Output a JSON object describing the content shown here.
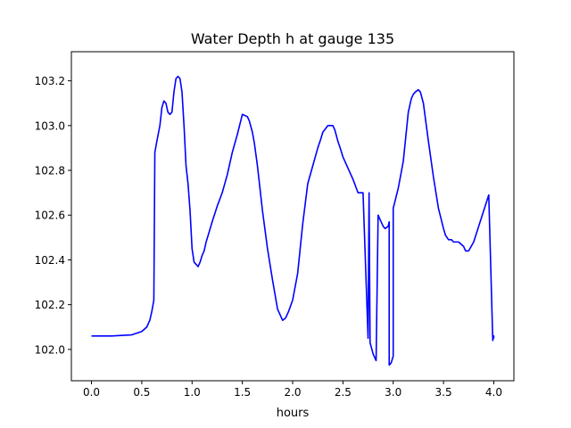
{
  "chart_data": {
    "type": "line",
    "title": "Water Depth h at gauge 135",
    "xlabel": "hours",
    "ylabel": "",
    "xlim": [
      -0.2,
      4.2
    ],
    "ylim": [
      101.86,
      103.33
    ],
    "grid": false,
    "legend": "none",
    "xticks": [
      {
        "value": 0.0,
        "label": "0.0"
      },
      {
        "value": 0.5,
        "label": "0.5"
      },
      {
        "value": 1.0,
        "label": "1.0"
      },
      {
        "value": 1.5,
        "label": "1.5"
      },
      {
        "value": 2.0,
        "label": "2.0"
      },
      {
        "value": 2.5,
        "label": "2.5"
      },
      {
        "value": 3.0,
        "label": "3.0"
      },
      {
        "value": 3.5,
        "label": "3.5"
      },
      {
        "value": 4.0,
        "label": "4.0"
      }
    ],
    "yticks": [
      {
        "value": 102.0,
        "label": "102.0"
      },
      {
        "value": 102.2,
        "label": "102.2"
      },
      {
        "value": 102.4,
        "label": "102.4"
      },
      {
        "value": 102.6,
        "label": "102.6"
      },
      {
        "value": 102.8,
        "label": "102.8"
      },
      {
        "value": 103.0,
        "label": "103.0"
      },
      {
        "value": 103.2,
        "label": "103.2"
      }
    ],
    "series": [
      {
        "color": "#0000ff",
        "x": [
          0.0,
          0.2,
          0.4,
          0.5,
          0.55,
          0.58,
          0.6,
          0.62,
          0.63,
          0.63,
          0.65,
          0.68,
          0.7,
          0.72,
          0.74,
          0.76,
          0.78,
          0.8,
          0.82,
          0.84,
          0.86,
          0.88,
          0.9,
          0.92,
          0.94,
          0.96,
          0.98,
          1.0,
          1.02,
          1.04,
          1.06,
          1.08,
          1.1,
          1.12,
          1.14,
          1.16,
          1.18,
          1.2,
          1.25,
          1.3,
          1.35,
          1.4,
          1.45,
          1.5,
          1.55,
          1.57,
          1.6,
          1.62,
          1.65,
          1.7,
          1.75,
          1.8,
          1.85,
          1.9,
          1.93,
          1.96,
          2.0,
          2.05,
          2.1,
          2.15,
          2.2,
          2.25,
          2.28,
          2.3,
          2.35,
          2.4,
          2.42,
          2.45,
          2.48,
          2.5,
          2.55,
          2.6,
          2.65,
          2.7,
          2.75,
          2.75,
          2.76,
          2.76,
          2.77,
          2.77,
          2.8,
          2.83,
          2.85,
          2.85,
          2.87,
          2.9,
          2.92,
          2.95,
          2.96,
          2.96,
          2.98,
          3.0,
          3.0,
          3.05,
          3.1,
          3.15,
          3.18,
          3.2,
          3.22,
          3.25,
          3.27,
          3.3,
          3.35,
          3.4,
          3.45,
          3.5,
          3.52,
          3.55,
          3.58,
          3.6,
          3.65,
          3.7,
          3.72,
          3.75,
          3.8,
          3.85,
          3.9,
          3.95,
          3.99,
          3.99,
          4.0,
          4.0
        ],
        "y": [
          102.06,
          102.06,
          102.065,
          102.08,
          102.1,
          102.13,
          102.17,
          102.22,
          102.88,
          102.88,
          102.93,
          103.0,
          103.08,
          103.11,
          103.1,
          103.06,
          103.05,
          103.06,
          103.15,
          103.21,
          103.22,
          103.21,
          103.15,
          103.0,
          102.82,
          102.74,
          102.62,
          102.45,
          102.39,
          102.38,
          102.37,
          102.39,
          102.42,
          102.44,
          102.48,
          102.51,
          102.54,
          102.57,
          102.64,
          102.7,
          102.78,
          102.88,
          102.96,
          103.05,
          103.04,
          103.02,
          102.97,
          102.92,
          102.82,
          102.62,
          102.45,
          102.31,
          102.18,
          102.13,
          102.14,
          102.17,
          102.22,
          102.34,
          102.56,
          102.74,
          102.82,
          102.9,
          102.94,
          102.97,
          103.0,
          103.0,
          102.98,
          102.93,
          102.89,
          102.86,
          102.81,
          102.76,
          102.7,
          102.7,
          102.05,
          102.05,
          102.7,
          102.7,
          102.03,
          102.03,
          101.98,
          101.95,
          102.6,
          102.6,
          102.58,
          102.55,
          102.54,
          102.55,
          102.57,
          101.93,
          101.94,
          101.97,
          102.63,
          102.72,
          102.84,
          103.06,
          103.12,
          103.14,
          103.15,
          103.16,
          103.15,
          103.1,
          102.93,
          102.77,
          102.63,
          102.54,
          102.51,
          102.49,
          102.49,
          102.48,
          102.48,
          102.46,
          102.44,
          102.44,
          102.48,
          102.55,
          102.62,
          102.69,
          102.04,
          102.04,
          102.06,
          102.05
        ]
      }
    ]
  }
}
